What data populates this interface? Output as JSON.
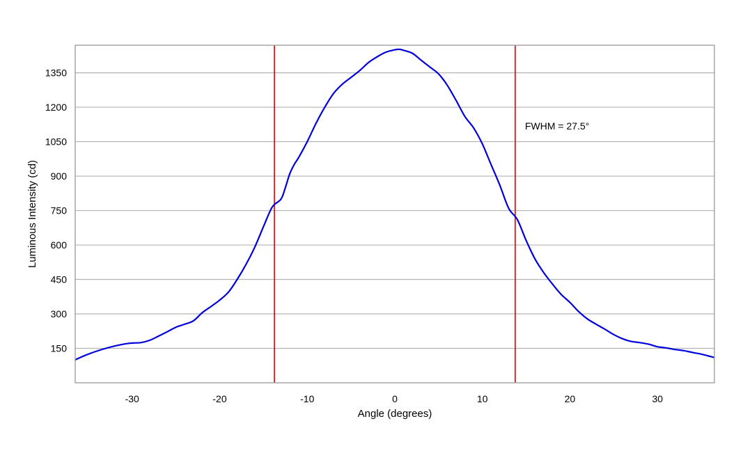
{
  "chart_data": {
    "type": "line",
    "title": "",
    "xlabel": "Angle (degrees)",
    "ylabel": "Luminous Intensity (cd)",
    "xlim": [
      -36.5,
      36.5
    ],
    "ylim": [
      0,
      1470
    ],
    "x_ticks": [
      -30,
      -20,
      -10,
      0,
      10,
      20,
      30
    ],
    "y_ticks": [
      150,
      300,
      450,
      600,
      750,
      900,
      1050,
      1200,
      1350
    ],
    "grid": "horizontal",
    "colors": {
      "line": "#0000dd",
      "markers": "#dd0000",
      "grid": "#b3b3b3",
      "frame": "#999999"
    },
    "series": [
      {
        "x": [
          -36.5,
          -35,
          -33,
          -31,
          -30,
          -29,
          -28,
          -27,
          -26,
          -25,
          -24,
          -23,
          -22,
          -21,
          -20,
          -19,
          -18,
          -17,
          -16,
          -15,
          -14,
          -13,
          -12.5,
          -12,
          -11.5,
          -11,
          -10,
          -9,
          -8,
          -7,
          -6,
          -5,
          -4,
          -3,
          -2,
          -1,
          0,
          0.5,
          1,
          2,
          3,
          4,
          5,
          6,
          7,
          8,
          9,
          10,
          11,
          12,
          13,
          14,
          15,
          16,
          17,
          18,
          19,
          20,
          21,
          22,
          23,
          24,
          25,
          26,
          27,
          28,
          29,
          30,
          31,
          32,
          33,
          34,
          35,
          36,
          36.5
        ],
        "y": [
          100,
          125,
          150,
          168,
          173,
          175,
          185,
          203,
          222,
          242,
          255,
          270,
          305,
          332,
          360,
          395,
          450,
          515,
          590,
          680,
          765,
          800,
          850,
          910,
          950,
          980,
          1050,
          1130,
          1200,
          1260,
          1300,
          1330,
          1360,
          1395,
          1420,
          1440,
          1450,
          1452,
          1448,
          1435,
          1405,
          1375,
          1345,
          1295,
          1230,
          1160,
          1110,
          1040,
          950,
          860,
          760,
          710,
          620,
          540,
          480,
          430,
          385,
          350,
          310,
          278,
          255,
          233,
          210,
          192,
          180,
          175,
          168,
          157,
          152,
          145,
          140,
          132,
          125,
          115,
          110
        ]
      }
    ],
    "vertical_markers": [
      -13.75,
      13.75
    ],
    "annotation": "FWHM = 27.5°"
  }
}
